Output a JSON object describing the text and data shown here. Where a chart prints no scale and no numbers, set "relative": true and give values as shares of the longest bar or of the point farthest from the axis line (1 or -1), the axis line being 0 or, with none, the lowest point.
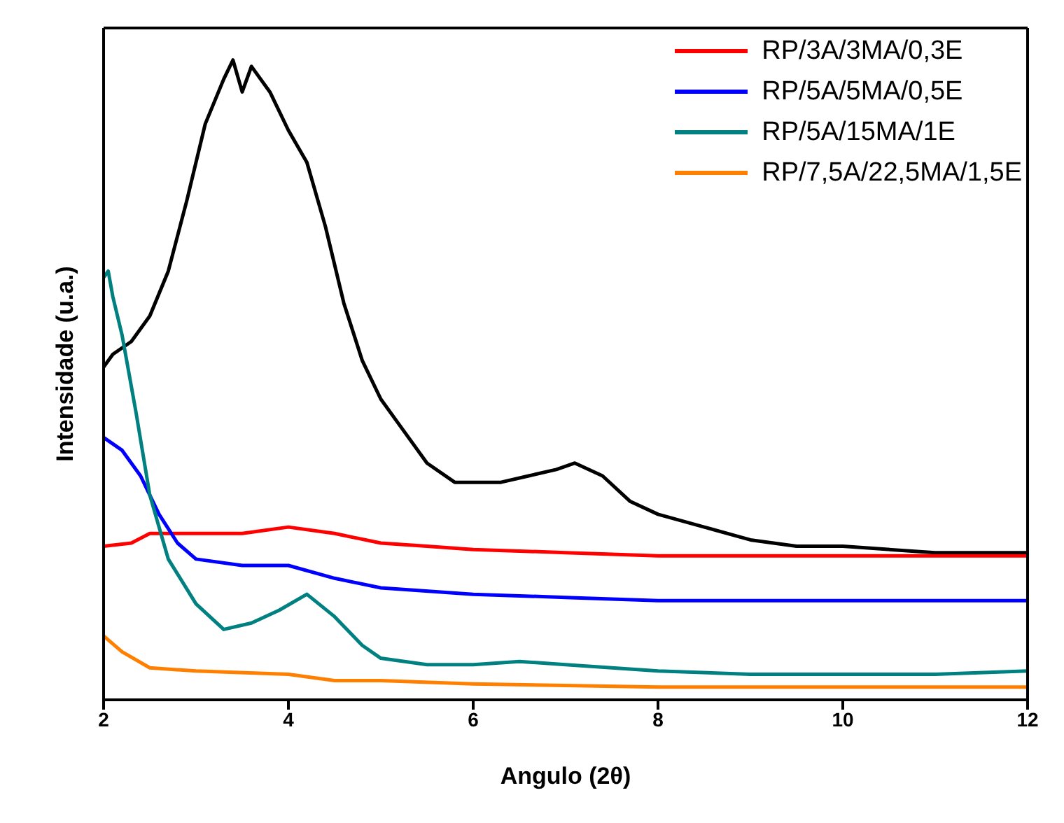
{
  "chart_data": {
    "type": "line",
    "relative": true,
    "xlabel": "Angulo (2θ)",
    "ylabel": "Intensidade (u.a.)",
    "xlim": [
      2,
      12
    ],
    "xticks": [
      2,
      4,
      6,
      8,
      10,
      12
    ],
    "legend": "top right",
    "marker": "none",
    "line_style": "solid",
    "series": [
      {
        "color": "#000000",
        "x": [
          2.0,
          2.1,
          2.3,
          2.5,
          2.7,
          2.9,
          3.1,
          3.3,
          3.4,
          3.5,
          3.6,
          3.8,
          4.0,
          4.2,
          4.4,
          4.6,
          4.8,
          5.0,
          5.2,
          5.5,
          5.8,
          6.0,
          6.3,
          6.6,
          6.9,
          7.1,
          7.4,
          7.7,
          8.0,
          8.5,
          9.0,
          9.5,
          10.0,
          11.0,
          12.0
        ],
        "values": [
          0.52,
          0.54,
          0.56,
          0.6,
          0.67,
          0.78,
          0.9,
          0.97,
          1.0,
          0.95,
          0.99,
          0.95,
          0.89,
          0.84,
          0.74,
          0.62,
          0.53,
          0.47,
          0.43,
          0.37,
          0.34,
          0.34,
          0.34,
          0.35,
          0.36,
          0.37,
          0.35,
          0.31,
          0.29,
          0.27,
          0.25,
          0.24,
          0.24,
          0.23,
          0.23
        ]
      },
      {
        "name": "RP/3A/3MA/0,3E",
        "color": "#ff0000",
        "x": [
          2.0,
          2.3,
          2.5,
          3.0,
          3.5,
          4.0,
          4.5,
          5.0,
          5.5,
          6.0,
          7.0,
          8.0,
          10.0,
          12.0
        ],
        "values": [
          0.24,
          0.245,
          0.26,
          0.26,
          0.26,
          0.27,
          0.26,
          0.245,
          0.24,
          0.235,
          0.23,
          0.225,
          0.225,
          0.225
        ]
      },
      {
        "name": "RP/5A/5MA/0,5E",
        "color": "#0000ff",
        "x": [
          2.0,
          2.2,
          2.4,
          2.6,
          2.8,
          3.0,
          3.5,
          4.0,
          4.5,
          5.0,
          6.0,
          7.0,
          8.0,
          10.0,
          12.0
        ],
        "values": [
          0.41,
          0.39,
          0.35,
          0.29,
          0.245,
          0.22,
          0.21,
          0.21,
          0.19,
          0.175,
          0.165,
          0.16,
          0.155,
          0.155,
          0.155
        ]
      },
      {
        "name": "RP/5A/15MA/1E",
        "color": "#008080",
        "x": [
          2.0,
          2.05,
          2.1,
          2.2,
          2.35,
          2.5,
          2.7,
          3.0,
          3.3,
          3.6,
          3.9,
          4.2,
          4.5,
          4.8,
          5.0,
          5.5,
          6.0,
          6.5,
          7.0,
          8.0,
          9.0,
          10.0,
          11.0,
          12.0
        ],
        "values": [
          0.66,
          0.67,
          0.63,
          0.57,
          0.45,
          0.32,
          0.22,
          0.15,
          0.11,
          0.12,
          0.14,
          0.165,
          0.13,
          0.085,
          0.065,
          0.055,
          0.055,
          0.06,
          0.055,
          0.045,
          0.04,
          0.04,
          0.04,
          0.045
        ]
      },
      {
        "name": "RP/7,5A/22,5MA/1,5E",
        "color": "#ff8000",
        "x": [
          2.0,
          2.2,
          2.5,
          3.0,
          4.0,
          4.5,
          5.0,
          6.0,
          8.0,
          10.0,
          12.0
        ],
        "values": [
          0.1,
          0.075,
          0.05,
          0.045,
          0.04,
          0.03,
          0.03,
          0.025,
          0.02,
          0.02,
          0.02
        ]
      }
    ]
  }
}
